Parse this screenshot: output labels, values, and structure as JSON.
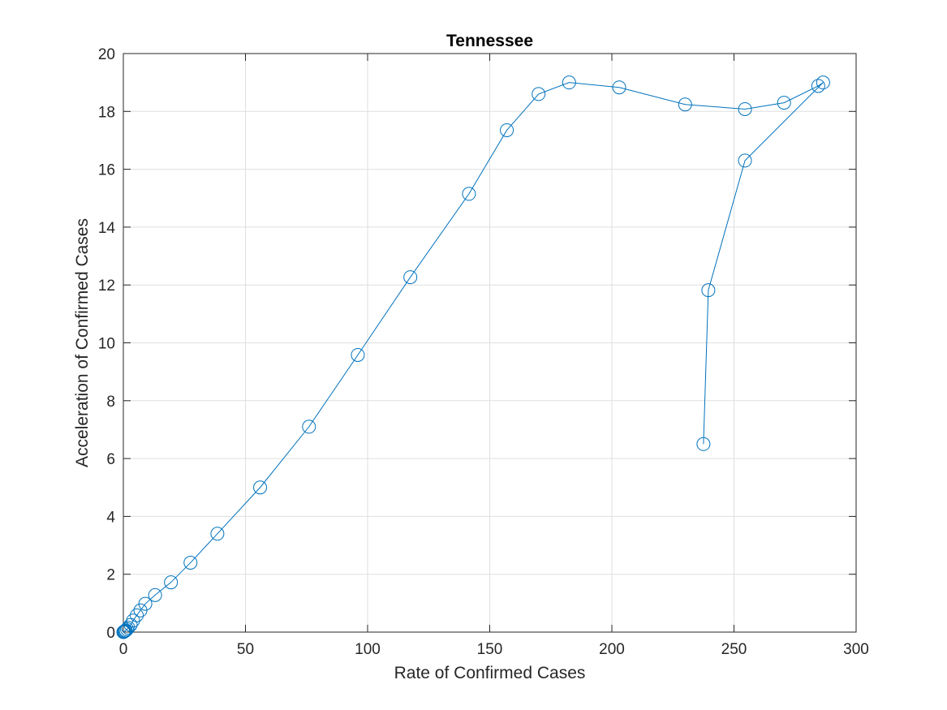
{
  "chart_data": {
    "type": "line",
    "title": "Tennessee",
    "xlabel": "Rate of Confirmed Cases",
    "ylabel": "Acceleration of Confirmed Cases",
    "xlim": [
      0,
      300
    ],
    "ylim": [
      0,
      20
    ],
    "xticks": [
      0,
      50,
      100,
      150,
      200,
      250,
      300
    ],
    "yticks": [
      0,
      2,
      4,
      6,
      8,
      10,
      12,
      14,
      16,
      18,
      20
    ],
    "grid": true,
    "legend": "none",
    "marker": "circle",
    "color": "#0072BD",
    "series": [
      {
        "x": [
          0,
          0.2,
          0.4,
          0.7,
          1,
          1.5,
          2,
          3,
          4,
          5.5,
          7,
          9,
          13,
          19.5,
          27.5,
          38.5,
          56,
          76,
          96,
          117.5,
          141.5,
          157,
          170,
          182.5,
          203,
          230,
          254.5,
          270.5,
          284.5,
          286.5,
          254.5,
          239.5,
          237.5
        ],
        "y": [
          0,
          0.01,
          0.02,
          0.04,
          0.06,
          0.1,
          0.15,
          0.25,
          0.4,
          0.58,
          0.75,
          0.98,
          1.28,
          1.72,
          2.4,
          3.4,
          5.0,
          7.1,
          9.58,
          12.27,
          15.15,
          17.35,
          18.6,
          19.0,
          18.83,
          18.24,
          18.08,
          18.3,
          18.88,
          19.0,
          16.3,
          11.82,
          6.5
        ]
      }
    ]
  }
}
